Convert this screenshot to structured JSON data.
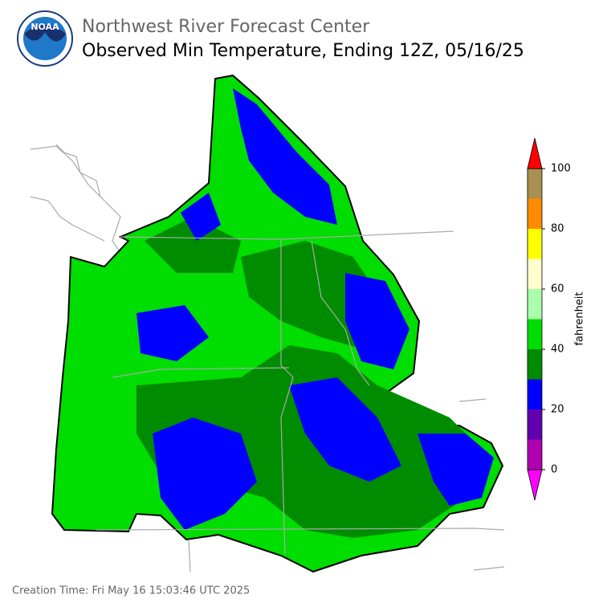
{
  "header": {
    "agency": "Northwest River Forecast Center",
    "title": "Observed Min Temperature, Ending 12Z, 05/16/25"
  },
  "logo": {
    "text": "NOAA"
  },
  "colorbar": {
    "label": "fahrenheit",
    "lim": [
      0,
      100
    ],
    "ticks": [
      0,
      20,
      40,
      60,
      80,
      100
    ],
    "bounds": [
      0,
      10,
      20,
      30,
      40,
      50,
      60,
      70,
      80,
      90,
      100
    ],
    "colors": [
      "#b000b0",
      "#6000b0",
      "#0000ff",
      "#008c00",
      "#00dd00",
      "#aaffaa",
      "#ffffcc",
      "#ffff00",
      "#ff8c00",
      "#a89050"
    ],
    "under_color": "#ff00ff",
    "over_color": "#ff0000"
  },
  "footer": {
    "creation_time": "Creation Time: Fri May 16 15:03:46 UTC 2025"
  }
}
